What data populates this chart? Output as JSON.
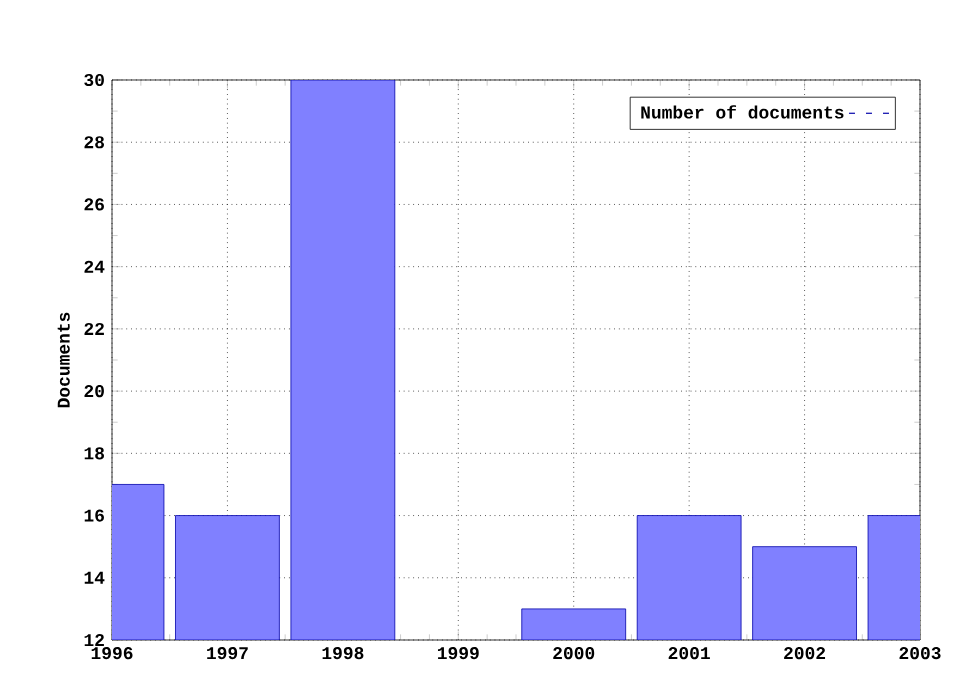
{
  "chart_data": {
    "type": "bar",
    "ylabel": "Documents",
    "x": [
      1996,
      1997,
      1998,
      1999,
      2000,
      2001,
      2002,
      2003
    ],
    "series": [
      {
        "name": "Number of documents",
        "color": "#8080ff",
        "values": [
          17,
          16,
          30,
          null,
          13,
          16,
          15,
          16
        ]
      }
    ],
    "xlim": [
      1996,
      2003
    ],
    "xticks": [
      1996,
      1997,
      1998,
      1999,
      2000,
      2001,
      2002,
      2003
    ],
    "ylim": [
      12,
      30
    ],
    "yticks": [
      12,
      14,
      16,
      18,
      20,
      22,
      24,
      26,
      28,
      30
    ],
    "grid": true,
    "legend": "top right"
  }
}
